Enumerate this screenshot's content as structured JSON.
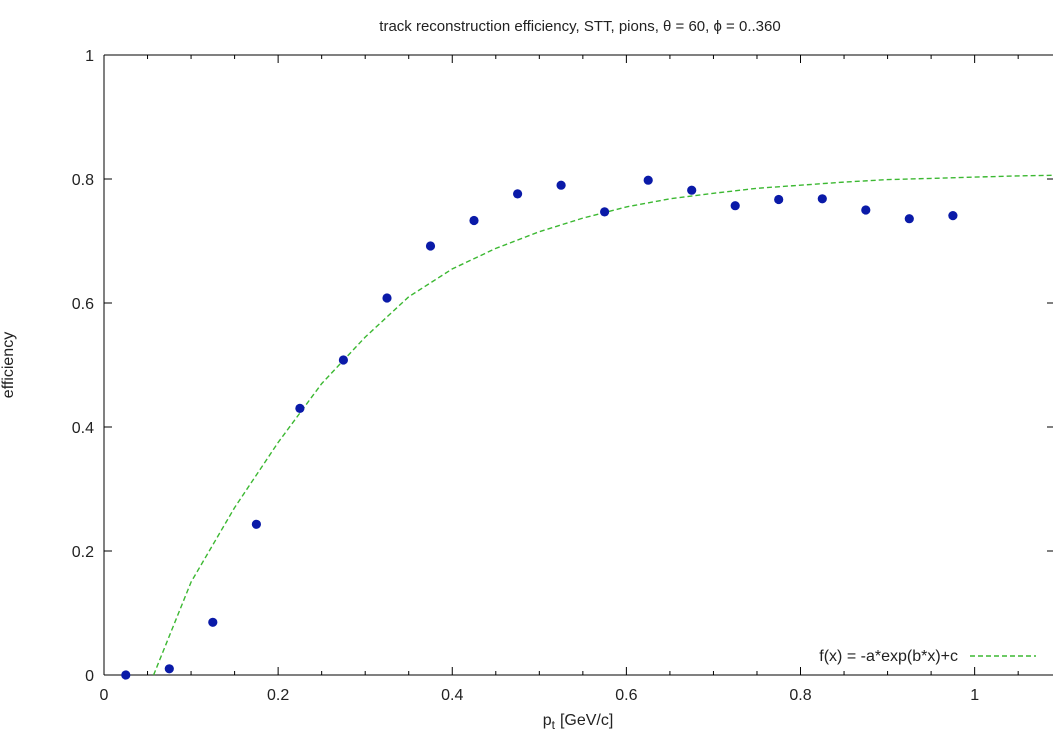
{
  "chart_data": {
    "type": "scatter",
    "title": "track reconstruction efficiency, STT, pions, θ = 60, ϕ = 0..360",
    "xlabel": "p",
    "xlabel_sub": "t",
    "xlabel_unit": "[GeV/c]",
    "ylabel": "efficiency",
    "xlim": [
      0,
      1.09
    ],
    "ylim": [
      0,
      1
    ],
    "xticks": [
      {
        "value": 0,
        "label": "0"
      },
      {
        "value": 0.2,
        "label": "0.2"
      },
      {
        "value": 0.4,
        "label": "0.4"
      },
      {
        "value": 0.6,
        "label": "0.6"
      },
      {
        "value": 0.8,
        "label": "0.8"
      },
      {
        "value": 1.0,
        "label": "1"
      }
    ],
    "yticks": [
      {
        "value": 0,
        "label": "0"
      },
      {
        "value": 0.2,
        "label": "0.2"
      },
      {
        "value": 0.4,
        "label": "0.4"
      },
      {
        "value": 0.6,
        "label": "0.6"
      },
      {
        "value": 0.8,
        "label": "0.8"
      },
      {
        "value": 1.0,
        "label": "1"
      }
    ],
    "grid": false,
    "legend_position": "bottom-right",
    "series": [
      {
        "kind": "points",
        "color": "#0a1aa8",
        "x": [
          0.025,
          0.075,
          0.125,
          0.175,
          0.225,
          0.275,
          0.325,
          0.375,
          0.425,
          0.475,
          0.525,
          0.575,
          0.625,
          0.675,
          0.725,
          0.775,
          0.825,
          0.875,
          0.925,
          0.975
        ],
        "y": [
          0.0,
          0.01,
          0.085,
          0.243,
          0.43,
          0.508,
          0.608,
          0.692,
          0.733,
          0.776,
          0.79,
          0.747,
          0.798,
          0.782,
          0.757,
          0.767,
          0.768,
          0.75,
          0.736,
          0.741
        ]
      },
      {
        "kind": "fit-line",
        "name": "f(x) = -a*exp(b*x)+c",
        "color": "#3cb832",
        "dash": "dashed",
        "x": [
          0.057,
          0.1,
          0.15,
          0.2,
          0.25,
          0.3,
          0.35,
          0.4,
          0.45,
          0.5,
          0.55,
          0.6,
          0.65,
          0.7,
          0.75,
          0.8,
          0.85,
          0.9,
          0.95,
          1.0,
          1.05,
          1.09
        ],
        "y": [
          0.0,
          0.15,
          0.27,
          0.375,
          0.47,
          0.545,
          0.61,
          0.655,
          0.688,
          0.715,
          0.737,
          0.755,
          0.768,
          0.777,
          0.785,
          0.79,
          0.795,
          0.799,
          0.801,
          0.803,
          0.805,
          0.806
        ]
      }
    ]
  }
}
